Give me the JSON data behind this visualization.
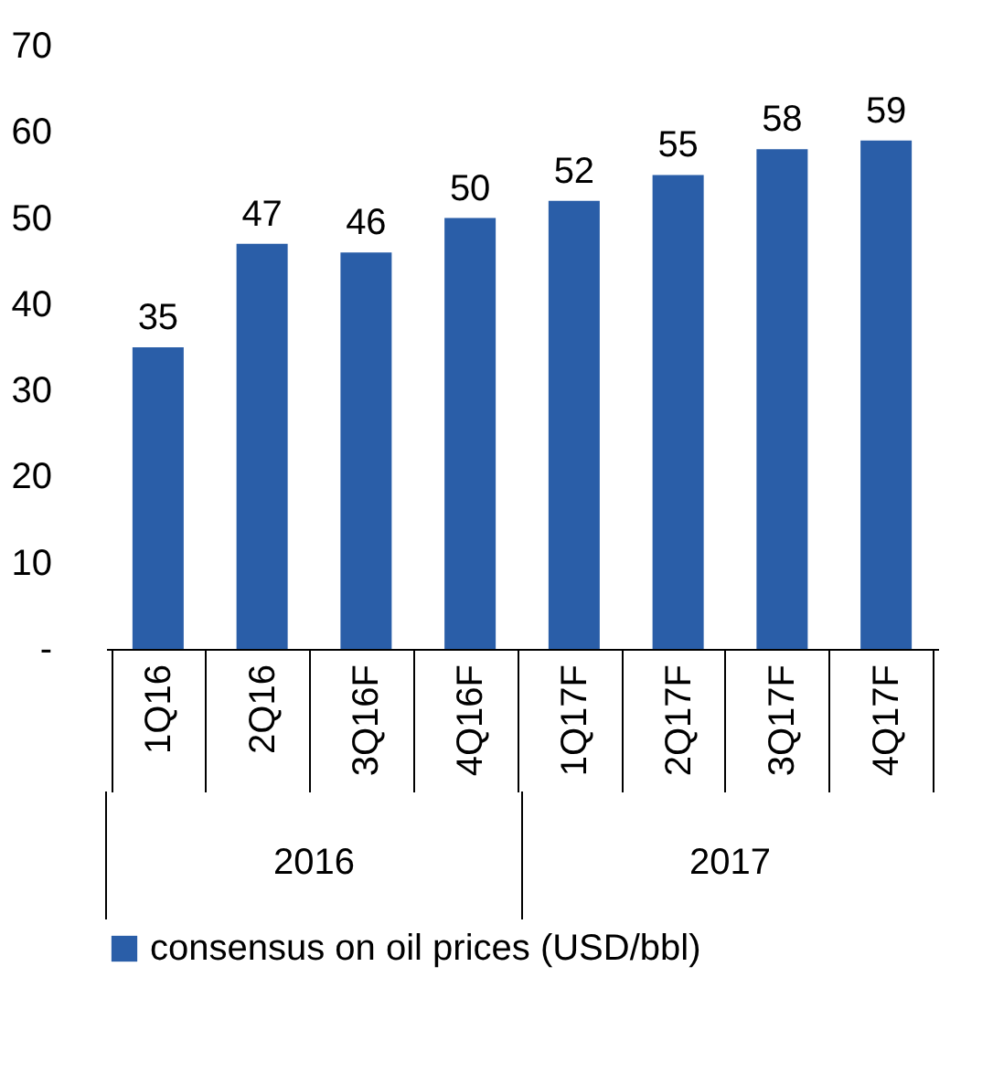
{
  "chart_data": {
    "type": "bar",
    "categories": [
      "1Q16",
      "2Q16",
      "3Q16F",
      "4Q16F",
      "1Q17F",
      "2Q17F",
      "3Q17F",
      "4Q17F"
    ],
    "series": [
      {
        "name": "consensus on oil prices (USD/bbl)",
        "color": "#2a5ea8",
        "values": [
          35,
          47,
          46,
          50,
          52,
          55,
          58,
          59
        ]
      }
    ],
    "ylim": [
      0,
      70
    ],
    "yticks": [
      {
        "value": 0,
        "label": "-"
      },
      10,
      20,
      30,
      40,
      50,
      60,
      70
    ],
    "data_labels": true,
    "grid": false,
    "legend": "bottom",
    "annotations": [
      "2016",
      "2017"
    ]
  }
}
